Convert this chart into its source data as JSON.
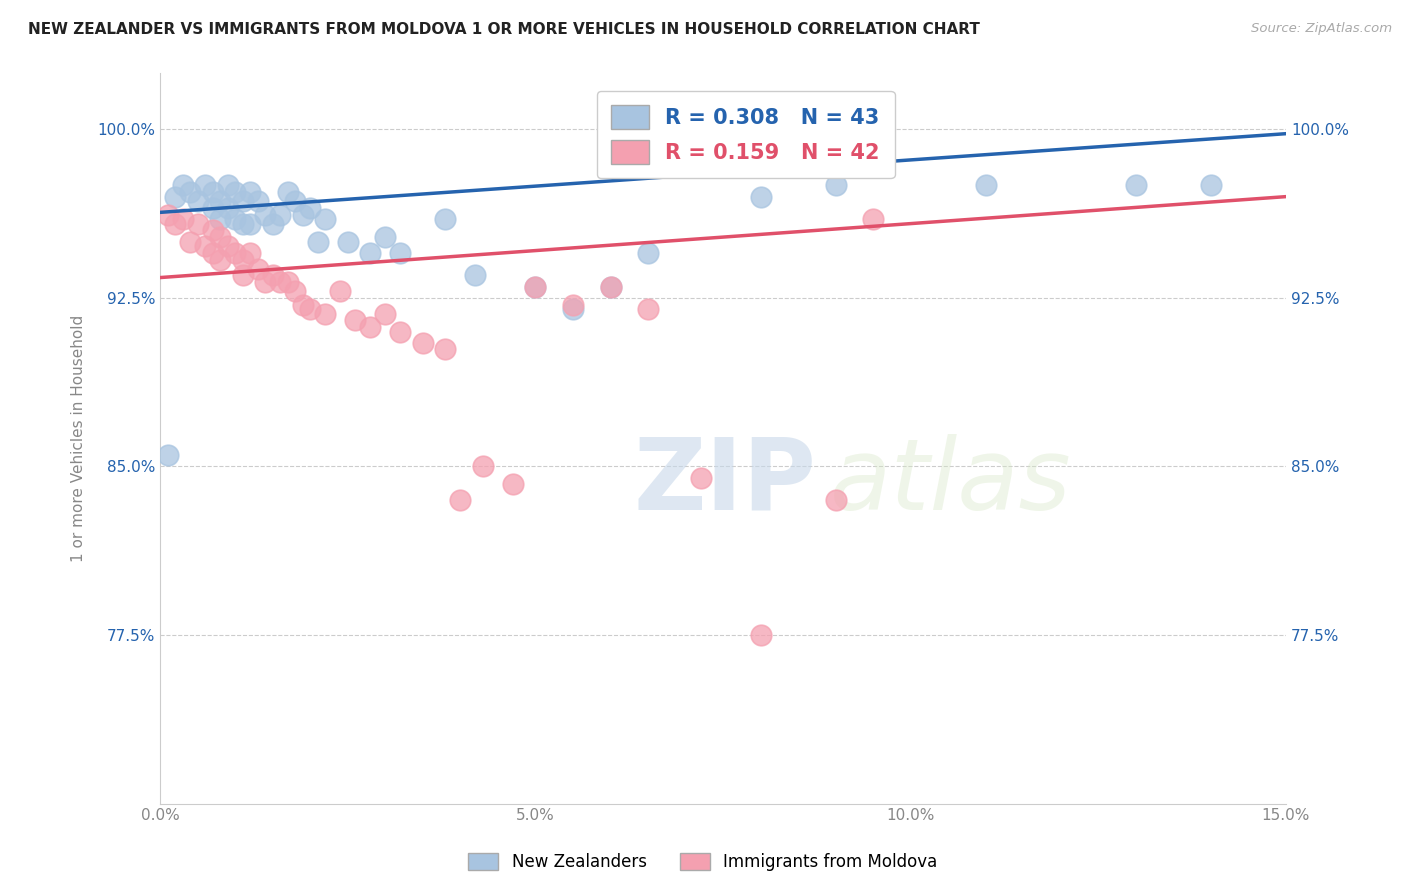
{
  "title": "NEW ZEALANDER VS IMMIGRANTS FROM MOLDOVA 1 OR MORE VEHICLES IN HOUSEHOLD CORRELATION CHART",
  "source": "Source: ZipAtlas.com",
  "ylabel": "1 or more Vehicles in Household",
  "xmin": 0.0,
  "xmax": 0.15,
  "ymin": 0.7,
  "ymax": 1.025,
  "yticks": [
    0.775,
    0.85,
    0.925,
    1.0
  ],
  "ytick_labels": [
    "77.5%",
    "85.0%",
    "92.5%",
    "100.0%"
  ],
  "xticks": [
    0.0,
    0.05,
    0.1,
    0.15
  ],
  "xtick_labels": [
    "0.0%",
    "5.0%",
    "10.0%",
    "15.0%"
  ],
  "nz_R": 0.308,
  "nz_N": 43,
  "mol_R": 0.159,
  "mol_N": 42,
  "nz_color": "#a8c4e0",
  "nz_line_color": "#2563ae",
  "mol_color": "#f4a0b0",
  "mol_line_color": "#e0506a",
  "nz_x": [
    0.001,
    0.002,
    0.003,
    0.004,
    0.005,
    0.006,
    0.007,
    0.007,
    0.008,
    0.008,
    0.009,
    0.009,
    0.01,
    0.01,
    0.011,
    0.011,
    0.012,
    0.012,
    0.013,
    0.014,
    0.015,
    0.016,
    0.017,
    0.018,
    0.019,
    0.02,
    0.021,
    0.022,
    0.025,
    0.028,
    0.03,
    0.032,
    0.038,
    0.042,
    0.05,
    0.055,
    0.06,
    0.065,
    0.08,
    0.09,
    0.11,
    0.13,
    0.14
  ],
  "nz_y": [
    0.855,
    0.97,
    0.975,
    0.972,
    0.968,
    0.975,
    0.972,
    0.965,
    0.968,
    0.96,
    0.975,
    0.965,
    0.972,
    0.96,
    0.968,
    0.958,
    0.972,
    0.958,
    0.968,
    0.962,
    0.958,
    0.962,
    0.972,
    0.968,
    0.962,
    0.965,
    0.95,
    0.96,
    0.95,
    0.945,
    0.952,
    0.945,
    0.96,
    0.935,
    0.93,
    0.92,
    0.93,
    0.945,
    0.97,
    0.975,
    0.975,
    0.975,
    0.975
  ],
  "mol_x": [
    0.001,
    0.002,
    0.003,
    0.004,
    0.005,
    0.006,
    0.007,
    0.007,
    0.008,
    0.008,
    0.009,
    0.01,
    0.011,
    0.011,
    0.012,
    0.013,
    0.014,
    0.015,
    0.016,
    0.017,
    0.018,
    0.019,
    0.02,
    0.022,
    0.024,
    0.026,
    0.028,
    0.03,
    0.032,
    0.035,
    0.038,
    0.04,
    0.043,
    0.047,
    0.05,
    0.055,
    0.06,
    0.065,
    0.072,
    0.08,
    0.09,
    0.095
  ],
  "mol_y": [
    0.962,
    0.958,
    0.96,
    0.95,
    0.958,
    0.948,
    0.955,
    0.945,
    0.952,
    0.942,
    0.948,
    0.945,
    0.942,
    0.935,
    0.945,
    0.938,
    0.932,
    0.935,
    0.932,
    0.932,
    0.928,
    0.922,
    0.92,
    0.918,
    0.928,
    0.915,
    0.912,
    0.918,
    0.91,
    0.905,
    0.902,
    0.835,
    0.85,
    0.842,
    0.93,
    0.922,
    0.93,
    0.92,
    0.845,
    0.775,
    0.835,
    0.96
  ],
  "watermark_zip": "ZIP",
  "watermark_atlas": "atlas",
  "background_color": "#ffffff",
  "grid_color": "#cccccc"
}
